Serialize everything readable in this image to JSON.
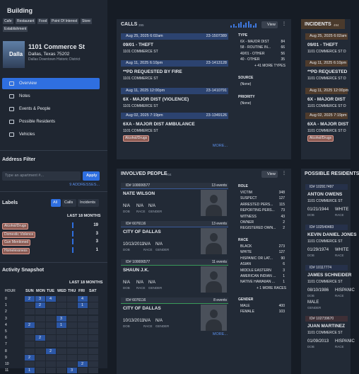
{
  "sidebar": {
    "title": "Building",
    "tags": [
      "Cafe",
      "Restaurant",
      "Food",
      "Point Of Interest",
      "Store",
      "Establishment"
    ],
    "thumb": "Dalla",
    "address": "1101 Commerce St",
    "city": "Dallas, Texas 75202",
    "district": "Dallas Downtown Historic District",
    "nav": [
      "Overview",
      "Notes",
      "Events & People",
      "Possible Residents",
      "Vehicles"
    ]
  },
  "address_filter": {
    "title": "Address Filter",
    "placeholder": "Type an apartment #...",
    "button": "Apply",
    "link": "9 ADDRESSES..."
  },
  "labels": {
    "title": "Labels",
    "tabs": [
      "All",
      "Calls",
      "Incidents"
    ],
    "period": "LAST 18 MONTHS",
    "items": [
      {
        "name": "Alcohol/Drugs",
        "count": 19
      },
      {
        "name": "Domestic Violence",
        "count": 3
      },
      {
        "name": "Gun Mentioned",
        "count": 3
      },
      {
        "name": "Homelessness",
        "count": 1
      }
    ]
  },
  "activity": {
    "title": "Activity Snapshot",
    "period": "LAST 18 MONTHS",
    "hour_label": "HOUR",
    "days": [
      "SUN",
      "MON",
      "TUE",
      "WED",
      "THU",
      "FRI",
      "SAT"
    ],
    "hours": [
      0,
      1,
      2,
      3,
      4,
      5,
      6,
      7,
      8,
      9,
      10,
      11
    ],
    "cells": [
      [
        2,
        3,
        4,
        null,
        null,
        4,
        null
      ],
      [
        null,
        2,
        null,
        null,
        null,
        1,
        null
      ],
      [
        null,
        null,
        null,
        null,
        null,
        null,
        null
      ],
      [
        null,
        null,
        null,
        3,
        null,
        null,
        null
      ],
      [
        2,
        null,
        null,
        1,
        null,
        null,
        null
      ],
      [
        null,
        null,
        null,
        null,
        null,
        null,
        null
      ],
      [
        null,
        2,
        null,
        null,
        null,
        null,
        null
      ],
      [
        null,
        null,
        null,
        null,
        null,
        null,
        null
      ],
      [
        null,
        null,
        2,
        null,
        null,
        null,
        null
      ],
      [
        2,
        null,
        null,
        null,
        null,
        null,
        null
      ],
      [
        null,
        null,
        null,
        null,
        null,
        2,
        null
      ],
      [
        1,
        null,
        null,
        null,
        3,
        null,
        null
      ]
    ]
  },
  "calls": {
    "title": "CALLS",
    "count": "395",
    "view": "View",
    "more": "MORE...",
    "items": [
      {
        "date": "Aug 25, 2025 6:02am",
        "id": "23-1507389",
        "title": "09/01 - THEFT",
        "address": "1101 COMMERCE ST"
      },
      {
        "date": "Aug 11, 2025 6:10pm",
        "id": "23-1413128",
        "title": "**PD REQUESTED BY FIRE",
        "address": "1101 COMMERCE ST"
      },
      {
        "date": "Aug 11, 2025 12:00pm",
        "id": "23-1410791",
        "title": "6X - MAJOR DIST (VIOLENCE)",
        "address": "1101 COMMERCE ST"
      },
      {
        "date": "Aug 02, 2025 7:19pm",
        "id": "23-1349126",
        "title": "6XA - MAJOR DIST AMBULANCE",
        "address": "1101 COMMERCE ST",
        "tag": "Alcohol/Drugs"
      }
    ],
    "type_title": "TYPE",
    "types": [
      {
        "name": "6X - MAJOR DIST",
        "count": 84
      },
      {
        "name": "58 - ROUTINE IN...",
        "count": 66
      },
      {
        "name": "40/01 - OTHER",
        "count": 56
      },
      {
        "name": "40 - OTHER",
        "count": 35
      }
    ],
    "types_more": "+ 41 MORE TYPES",
    "source_title": "SOURCE",
    "source": "(None)",
    "priority_title": "PRIORITY",
    "priority": "(None)"
  },
  "incidents": {
    "title": "INCIDENTS",
    "count": "494",
    "items": [
      {
        "date": "Aug 25, 2025 6:02am",
        "title": "09/01 - THEFT",
        "address": "1101 COMMERCE ST D"
      },
      {
        "date": "Aug 11, 2025 6:10pm",
        "title": "**PD REQUESTED",
        "address": "1101 COMMERCE ST D"
      },
      {
        "date": "Aug 11, 2025 12:00pm",
        "title": "6X - MAJOR DIST",
        "address": "1101 COMMERCE ST D"
      },
      {
        "date": "Aug 02, 2025 7:19pm",
        "title": "6XA - MAJOR DIST",
        "address": "1101 COMMERCE ST D",
        "tag": "Alcohol/Drugs"
      }
    ]
  },
  "people": {
    "title": "INVOLVED PEOPLE",
    "count": "704",
    "view": "View",
    "more": "MORE...",
    "field_labels": [
      "DOB",
      "RACE",
      "GENDER"
    ],
    "items": [
      {
        "id": "ID# 100006577",
        "events": "13 events",
        "name": "NATE WILSON",
        "fields": [
          "N/A",
          "N/A",
          "N/A"
        ]
      },
      {
        "id": "ID# 6076116",
        "events": "13 events",
        "name": "CITY OF DALLAS",
        "fields": [
          "10/13/2011",
          "N/A",
          "N/A"
        ]
      },
      {
        "id": "ID# 100006577",
        "events": "11 events",
        "name": "SHAUN J.K.",
        "fields": [
          "N/A",
          "N/A",
          "N/A"
        ]
      },
      {
        "id": "ID# 6076116",
        "events": "8 events",
        "name": "CITY OF DALLAS",
        "fields": [
          "10/13/2011",
          "N/A",
          "N/A"
        ]
      }
    ],
    "role_title": "ROLE",
    "roles": [
      {
        "name": "VICTIM",
        "count": 348
      },
      {
        "name": "SUSPECT",
        "count": 127
      },
      {
        "name": "ARRESTED PERS...",
        "count": 115
      },
      {
        "name": "REPORTING PERS...",
        "count": 73
      },
      {
        "name": "WITNESS",
        "count": 43
      },
      {
        "name": "OWNER",
        "count": 2
      },
      {
        "name": "REGISTERED OWN...",
        "count": 2
      }
    ],
    "race_title": "RACE",
    "races": [
      {
        "name": "BLACK",
        "count": 273
      },
      {
        "name": "WHITE",
        "count": 127
      },
      {
        "name": "HISPANIC OR LAT...",
        "count": 90
      },
      {
        "name": "ASIAN",
        "count": 6
      },
      {
        "name": "MIDDLE EASTERN",
        "count": 3
      },
      {
        "name": "AMERICAN INDIAN ...",
        "count": 1
      },
      {
        "name": "NATIVE HAWAIIAN ...",
        "count": 1
      }
    ],
    "races_more": "+ 1 MORE RACES",
    "gender_title": "GENDER",
    "genders": [
      {
        "name": "MALE",
        "count": 400
      },
      {
        "name": "FEMALE",
        "count": 103
      }
    ]
  },
  "residents": {
    "title": "POSSIBLE RESIDENTS",
    "items": [
      {
        "id": "ID# 102917497",
        "name": "ANTON OWENS",
        "address": "1101 COMMERCE ST",
        "dob": "01/21/1944",
        "race": "WHITE"
      },
      {
        "id": "ID# 102540483",
        "name": "KEVIN DANIEL JONES",
        "address": "1101 COMMERCE ST",
        "dob": "01/29/1974",
        "race": "WHITE"
      },
      {
        "id": "ID# 10117774",
        "name": "JAMES SCHNEIDER",
        "address": "1101 COMMERCE ST",
        "dob": "08/10/1986",
        "race": "HISPANIC",
        "gender": "MALE"
      },
      {
        "id": "ID# 102739670",
        "name": "JUAN MARTINEZ",
        "address": "1101 COMMERCE ST",
        "dob": "01/09/2013",
        "race": "HISPANIC"
      }
    ],
    "labels": [
      "DOB",
      "RACE",
      "GENDER"
    ]
  }
}
